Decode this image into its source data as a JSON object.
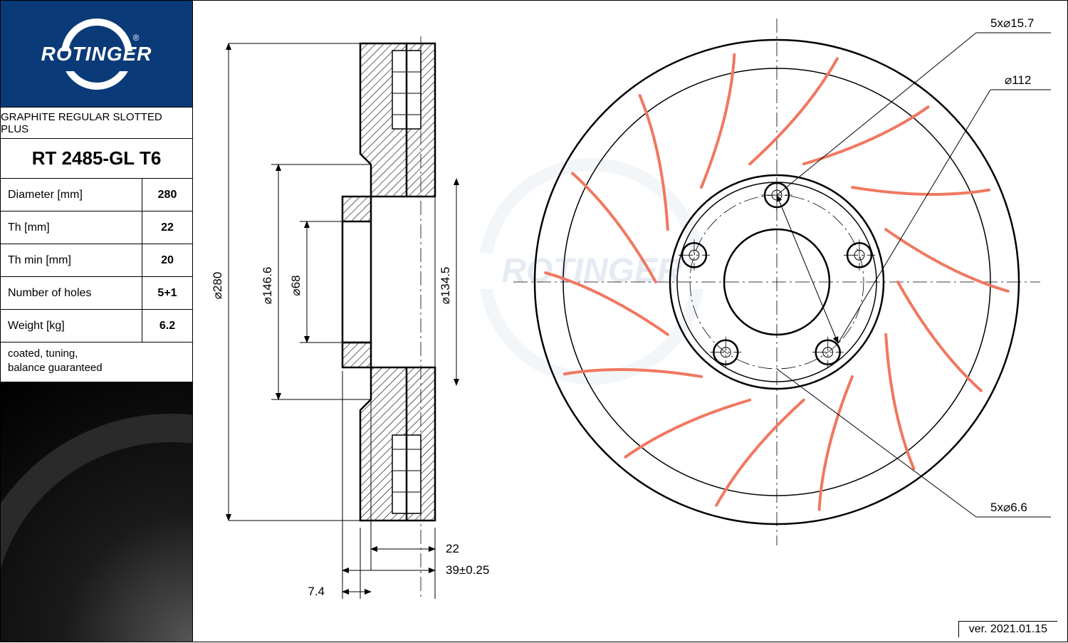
{
  "brand": "ROTINGER",
  "series": "GRAPHITE REGULAR SLOTTED PLUS",
  "part_number": "RT 2485-GL T6",
  "specs": [
    {
      "label": "Diameter [mm]",
      "value": "280"
    },
    {
      "label": "Th [mm]",
      "value": "22"
    },
    {
      "label": "Th min [mm]",
      "value": "20"
    },
    {
      "label": "Number of holes",
      "value": "5+1"
    },
    {
      "label": "Weight [kg]",
      "value": "6.2"
    }
  ],
  "features": "coated, tuning,\nbalance guaranteed",
  "version": "ver. 2021.01.15",
  "section_dims": {
    "outer_dia": "⌀280",
    "d1": "⌀146.6",
    "d2": "⌀68",
    "d3": "⌀134.5",
    "th": "22",
    "offset": "39±0.25",
    "flange": "7.4"
  },
  "front_callouts": {
    "bolt": "5x⌀15.7",
    "pcd": "⌀112",
    "pin": "5x⌀6.6"
  },
  "front_view": {
    "outer_r": 340,
    "inner_outer_r": 300,
    "hub_r": 140,
    "bore_r": 74,
    "pcd_r": 122,
    "bolt_r": 17,
    "pin_r": 7,
    "n_bolts": 5,
    "n_slots": 14,
    "slot_color": "#f07860"
  },
  "colors": {
    "logo_bg": "#0a3a78",
    "line": "#000000",
    "slot": "#f07860",
    "watermark": "#cfd9e8"
  }
}
